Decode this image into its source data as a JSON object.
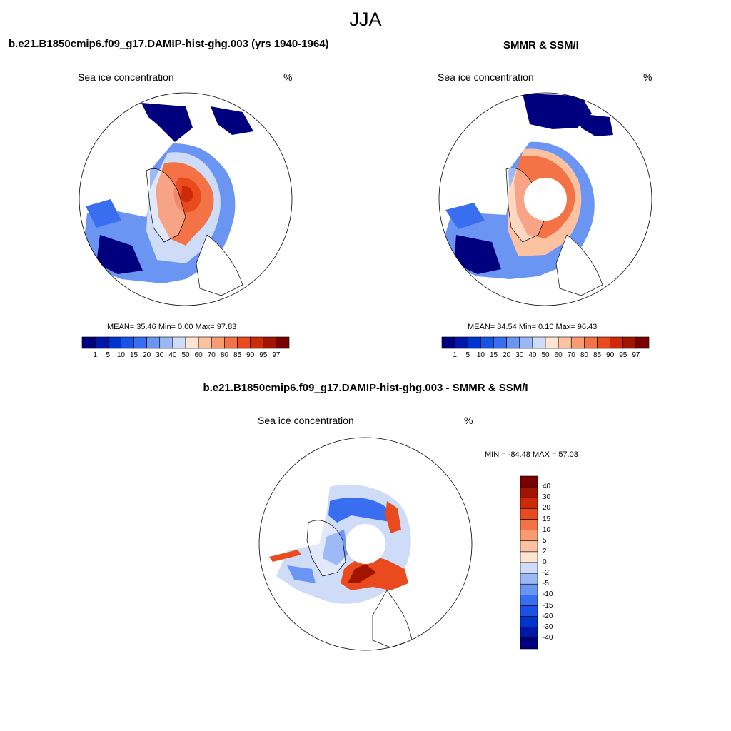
{
  "title": "JJA",
  "panels": [
    {
      "id": "model",
      "title": "b.e21.B1850cmip6.f09_g17.DAMIP-hist-ghg.003 (yrs 1940-1964)",
      "left_label": "Sea ice concentration",
      "right_label": "%",
      "stats": "MEAN=  35.46  Min=   0.00  Max=  97.83"
    },
    {
      "id": "obs",
      "title": "SMMR & SSM/I",
      "left_label": "Sea ice concentration",
      "right_label": "%",
      "stats": "MEAN=  34.54  Min=   0.10  Max=  96.43"
    },
    {
      "id": "diff",
      "title": "b.e21.B1850cmip6.f09_g17.DAMIP-hist-ghg.003 - SMMR & SSM/I",
      "left_label": "Sea ice concentration",
      "right_label": "%",
      "stats": "MIN = -84.48 MAX =  57.03"
    }
  ],
  "colorbar_abs": {
    "ticks": [
      "1",
      "5",
      "10",
      "15",
      "20",
      "30",
      "40",
      "50",
      "60",
      "70",
      "80",
      "85",
      "90",
      "95",
      "97"
    ],
    "colors": [
      "#00007f",
      "#0018a8",
      "#0034d0",
      "#1a52e6",
      "#3a6ef0",
      "#6a95f2",
      "#9bb8f4",
      "#cfdcf8",
      "#fde5d2",
      "#fbc2a2",
      "#f89a72",
      "#f37246",
      "#e94a1e",
      "#cc2a08",
      "#a31400",
      "#7a0000"
    ]
  },
  "colorbar_diff": {
    "ticks": [
      "40",
      "30",
      "20",
      "15",
      "10",
      "5",
      "2",
      "0",
      "-2",
      "-5",
      "-10",
      "-15",
      "-20",
      "-30",
      "-40"
    ],
    "colors": [
      "#7a0000",
      "#a31400",
      "#cc2a08",
      "#e94a1e",
      "#f37246",
      "#f89a72",
      "#fbc2a2",
      "#fde5d2",
      "#cfdcf8",
      "#9bb8f4",
      "#6a95f2",
      "#3a6ef0",
      "#1a52e6",
      "#0034d0",
      "#0018a8",
      "#00007f"
    ]
  }
}
